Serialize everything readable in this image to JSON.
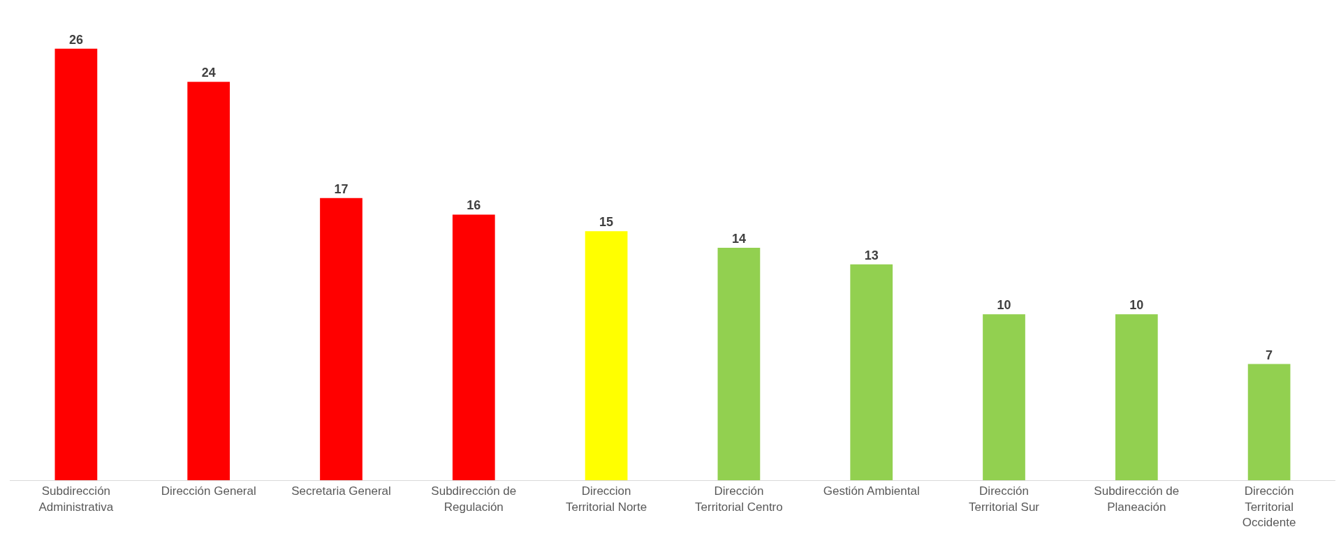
{
  "chart_data": {
    "type": "bar",
    "categories": [
      "Subdirección Administrativa",
      "Dirección General",
      "Secretaria General",
      "Subdirección de Regulación",
      "Direccion Territorial Norte",
      "Dirección Territorial Centro",
      "Gestión Ambiental",
      "Dirección Territorial Sur",
      "Subdirección de Planeación",
      "Dirección Territorial Occidente"
    ],
    "values": [
      26,
      24,
      17,
      16,
      15,
      14,
      13,
      10,
      10,
      7
    ],
    "colors": [
      "#ff0000",
      "#ff0000",
      "#ff0000",
      "#ff0000",
      "#ffff00",
      "#92d050",
      "#92d050",
      "#92d050",
      "#92d050",
      "#92d050"
    ],
    "data_labels": true
  }
}
